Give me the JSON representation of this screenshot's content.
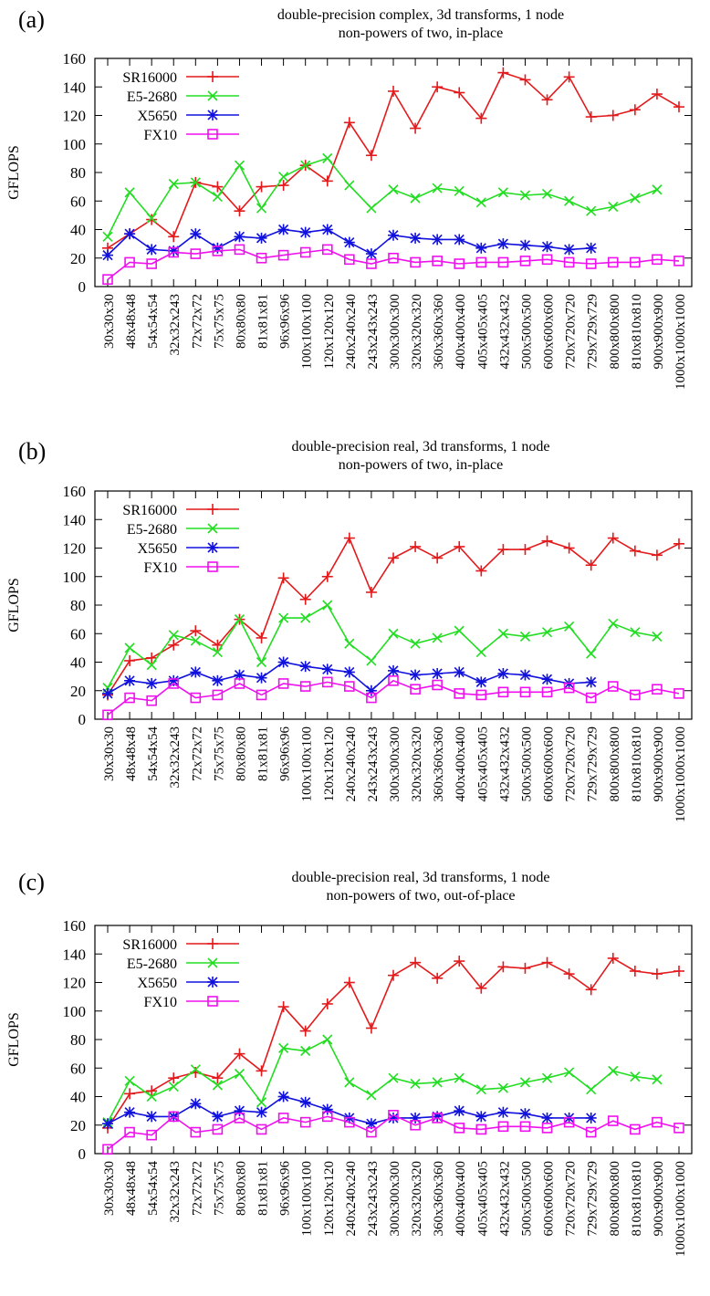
{
  "colors": {
    "SR16000": "#e31a1c",
    "E5-2680": "#22dd22",
    "X5650": "#1111dd",
    "FX10": "#ee11ee"
  },
  "markers": {
    "SR16000": "plus",
    "E5-2680": "cross",
    "X5650": "star",
    "FX10": "open-square"
  },
  "chart_data": [
    {
      "type": "line",
      "panel_label": "(a)",
      "title": "double-precision complex, 3d transforms, 1 node",
      "subtitle": "non-powers of two, in-place",
      "xlabel": "",
      "ylabel": "GFLOPS",
      "ylim": [
        0,
        160
      ],
      "yticks": [
        0,
        20,
        40,
        60,
        80,
        100,
        120,
        140,
        160
      ],
      "grid": false,
      "legend_position": "top-left",
      "categories": [
        "30x30x30",
        "48x48x48",
        "54x54x54",
        "32x32x243",
        "72x72x72",
        "75x75x75",
        "80x80x80",
        "81x81x81",
        "96x96x96",
        "100x100x100",
        "120x120x120",
        "240x240x240",
        "243x243x243",
        "300x300x300",
        "320x320x320",
        "360x360x360",
        "400x400x400",
        "405x405x405",
        "432x432x432",
        "500x500x500",
        "600x600x600",
        "720x720x720",
        "729x729x729",
        "800x800x800",
        "810x810x810",
        "900x900x900",
        "1000x1000x1000"
      ],
      "series": [
        {
          "name": "SR16000",
          "values": [
            27,
            37,
            47,
            35,
            73,
            70,
            53,
            70,
            71,
            85,
            74,
            115,
            92,
            137,
            111,
            140,
            136,
            118,
            150,
            145,
            131,
            147,
            119,
            120,
            124,
            135,
            126
          ]
        },
        {
          "name": "E5-2680",
          "values": [
            35,
            66,
            48,
            72,
            73,
            63,
            85,
            55,
            77,
            85,
            90,
            71,
            55,
            68,
            62,
            69,
            67,
            59,
            66,
            64,
            65,
            60,
            53,
            56,
            62,
            68,
            null
          ]
        },
        {
          "name": "X5650",
          "values": [
            22,
            37,
            26,
            25,
            37,
            27,
            35,
            34,
            40,
            38,
            40,
            31,
            23,
            36,
            34,
            33,
            33,
            27,
            30,
            29,
            28,
            26,
            27,
            null,
            null,
            null,
            null
          ]
        },
        {
          "name": "FX10",
          "values": [
            5,
            17,
            16,
            24,
            23,
            25,
            26,
            20,
            22,
            24,
            26,
            19,
            16,
            20,
            17,
            18,
            16,
            17,
            17,
            18,
            19,
            17,
            16,
            17,
            17,
            19,
            18
          ]
        }
      ]
    },
    {
      "type": "line",
      "panel_label": "(b)",
      "title": "double-precision real, 3d transforms, 1 node",
      "subtitle": "non-powers of two, in-place",
      "xlabel": "",
      "ylabel": "GFLOPS",
      "ylim": [
        0,
        160
      ],
      "yticks": [
        0,
        20,
        40,
        60,
        80,
        100,
        120,
        140,
        160
      ],
      "grid": false,
      "legend_position": "top-left",
      "categories": [
        "30x30x30",
        "48x48x48",
        "54x54x54",
        "32x32x243",
        "72x72x72",
        "75x75x75",
        "80x80x80",
        "81x81x81",
        "96x96x96",
        "100x100x100",
        "120x120x120",
        "240x240x240",
        "243x243x243",
        "300x300x300",
        "320x320x320",
        "360x360x360",
        "400x400x400",
        "405x405x405",
        "432x432x432",
        "500x500x500",
        "600x600x600",
        "720x720x720",
        "729x729x729",
        "800x800x800",
        "810x810x810",
        "900x900x900",
        "1000x1000x1000"
      ],
      "series": [
        {
          "name": "SR16000",
          "values": [
            17,
            41,
            43,
            52,
            62,
            52,
            70,
            57,
            99,
            84,
            100,
            127,
            89,
            113,
            121,
            113,
            121,
            104,
            119,
            119,
            125,
            120,
            108,
            127,
            118,
            115,
            123
          ]
        },
        {
          "name": "E5-2680",
          "values": [
            22,
            50,
            38,
            59,
            55,
            47,
            70,
            40,
            71,
            71,
            80,
            53,
            41,
            60,
            53,
            57,
            62,
            47,
            60,
            58,
            61,
            65,
            46,
            67,
            61,
            58,
            null
          ]
        },
        {
          "name": "X5650",
          "values": [
            18,
            27,
            25,
            27,
            33,
            27,
            31,
            29,
            40,
            37,
            35,
            33,
            20,
            34,
            31,
            32,
            33,
            26,
            32,
            31,
            28,
            25,
            26,
            null,
            null,
            null,
            null
          ]
        },
        {
          "name": "FX10",
          "values": [
            3,
            15,
            13,
            25,
            15,
            17,
            25,
            17,
            25,
            23,
            26,
            23,
            15,
            27,
            21,
            24,
            18,
            17,
            19,
            19,
            19,
            22,
            15,
            23,
            17,
            21,
            18
          ]
        }
      ]
    },
    {
      "type": "line",
      "panel_label": "(c)",
      "title": "double-precision real, 3d transforms, 1 node",
      "subtitle": "non-powers of two, out-of-place",
      "xlabel": "",
      "ylabel": "GFLOPS",
      "ylim": [
        0,
        160
      ],
      "yticks": [
        0,
        20,
        40,
        60,
        80,
        100,
        120,
        140,
        160
      ],
      "grid": false,
      "legend_position": "top-left",
      "categories": [
        "30x30x30",
        "48x48x48",
        "54x54x54",
        "32x32x243",
        "72x72x72",
        "75x75x75",
        "80x80x80",
        "81x81x81",
        "96x96x96",
        "100x100x100",
        "120x120x120",
        "240x240x240",
        "243x243x243",
        "300x300x300",
        "320x320x320",
        "360x360x360",
        "400x400x400",
        "405x405x405",
        "432x432x432",
        "500x500x500",
        "600x600x600",
        "720x720x720",
        "729x729x729",
        "800x800x800",
        "810x810x810",
        "900x900x900",
        "1000x1000x1000"
      ],
      "series": [
        {
          "name": "SR16000",
          "values": [
            18,
            42,
            44,
            53,
            57,
            53,
            70,
            58,
            103,
            86,
            105,
            120,
            88,
            125,
            134,
            123,
            135,
            116,
            131,
            130,
            134,
            126,
            115,
            137,
            128,
            126,
            128
          ]
        },
        {
          "name": "E5-2680",
          "values": [
            22,
            51,
            40,
            47,
            59,
            48,
            56,
            36,
            74,
            72,
            80,
            50,
            41,
            53,
            49,
            50,
            53,
            45,
            46,
            50,
            53,
            57,
            45,
            58,
            54,
            52,
            null
          ]
        },
        {
          "name": "X5650",
          "values": [
            21,
            29,
            26,
            26,
            35,
            26,
            30,
            29,
            40,
            36,
            31,
            25,
            21,
            25,
            25,
            26,
            30,
            26,
            29,
            28,
            25,
            25,
            25,
            null,
            null,
            null,
            null
          ]
        },
        {
          "name": "FX10",
          "values": [
            3,
            15,
            13,
            26,
            15,
            17,
            25,
            17,
            25,
            22,
            26,
            22,
            15,
            27,
            20,
            25,
            18,
            17,
            19,
            19,
            18,
            22,
            15,
            23,
            17,
            22,
            18
          ]
        }
      ]
    }
  ]
}
